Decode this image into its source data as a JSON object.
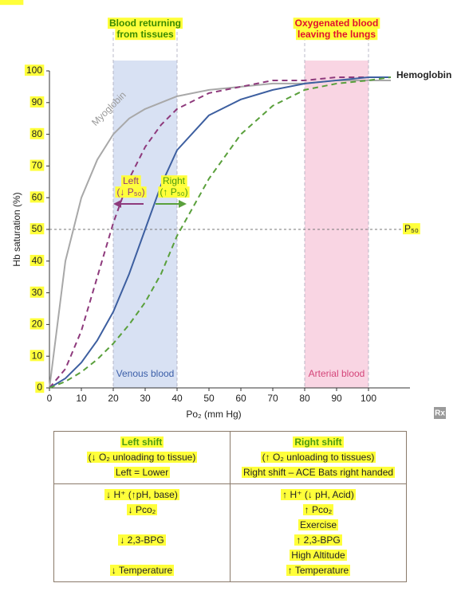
{
  "chart_data": {
    "type": "line",
    "x": [
      0,
      5,
      10,
      15,
      20,
      25,
      30,
      35,
      40,
      50,
      60,
      70,
      80,
      90,
      100,
      107
    ],
    "series": [
      {
        "name": "Myoglobin",
        "color": "#a8a8a8",
        "dash": false,
        "values": [
          0,
          40,
          60,
          72,
          80,
          85,
          88,
          90,
          92,
          94,
          95,
          96,
          96,
          97,
          97,
          97
        ]
      },
      {
        "color": "#8e3a7c",
        "dash": true,
        "values": [
          0,
          6,
          18,
          35,
          52,
          66,
          76,
          83,
          88,
          93,
          95,
          97,
          97,
          98,
          98,
          98
        ]
      },
      {
        "name": "Hemoglobin",
        "color": "#3d5fa0",
        "dash": false,
        "values": [
          0,
          3,
          8,
          15,
          24,
          36,
          50,
          64,
          75,
          86,
          91,
          94,
          96,
          97,
          98,
          98
        ]
      },
      {
        "color": "#5aa03c",
        "dash": true,
        "values": [
          0,
          2,
          5,
          9,
          14,
          20,
          27,
          36,
          48,
          66,
          80,
          89,
          94,
          96,
          97,
          98
        ]
      }
    ],
    "xlabel": "Po₂ (mm Hg)",
    "ylabel": "Hb saturation (%)",
    "xlim": [
      0,
      113
    ],
    "ylim": [
      0,
      100
    ],
    "xticks": [
      0,
      10,
      20,
      30,
      40,
      50,
      60,
      70,
      80,
      90,
      100
    ],
    "yticks": [
      0,
      10,
      20,
      30,
      40,
      50,
      60,
      70,
      80,
      90,
      100
    ],
    "bands": [
      {
        "label": "Venous blood",
        "from": 20,
        "to": 40,
        "color": "#d8e1f3",
        "text_color": "#3b5ea8",
        "title": [
          "Blood returning",
          "from tissues"
        ],
        "title_color": "#3a8a00"
      },
      {
        "label": "Arterial blood",
        "from": 80,
        "to": 100,
        "color": "#f9d5e3",
        "text_color": "#d4467a",
        "title": [
          "Oxygenated blood",
          "leaving the lungs"
        ],
        "title_color": "#e0102f"
      }
    ],
    "reference_line": {
      "value": 50,
      "label": "P₅₀"
    },
    "shift_labels": {
      "left": [
        "Left",
        "(↓ P₅₀)"
      ],
      "right": [
        "Right",
        "(↑ P₅₀)"
      ]
    },
    "badge": "Rx"
  },
  "table": {
    "header": [
      {
        "title": "Left shift",
        "lines": [
          "(↓ O₂ unloading to tissue)",
          "Left = Lower"
        ]
      },
      {
        "title": "Right shift",
        "lines": [
          "(↑ O₂ unloading to tissues)",
          "Right shift – ACE Bats right handed"
        ]
      }
    ],
    "rows": [
      [
        "↓ H⁺ (↑pH, base)",
        "↑ H⁺ (↓ pH, Acid)"
      ],
      [
        "↓ Pco₂",
        "↑ Pco₂"
      ],
      [
        null,
        "Exercise"
      ],
      [
        "↓ 2,3-BPG",
        "↑ 2,3-BPG"
      ],
      [
        null,
        "High Altitude"
      ],
      [
        "↓ Temperature",
        "↑ Temperature"
      ]
    ]
  }
}
